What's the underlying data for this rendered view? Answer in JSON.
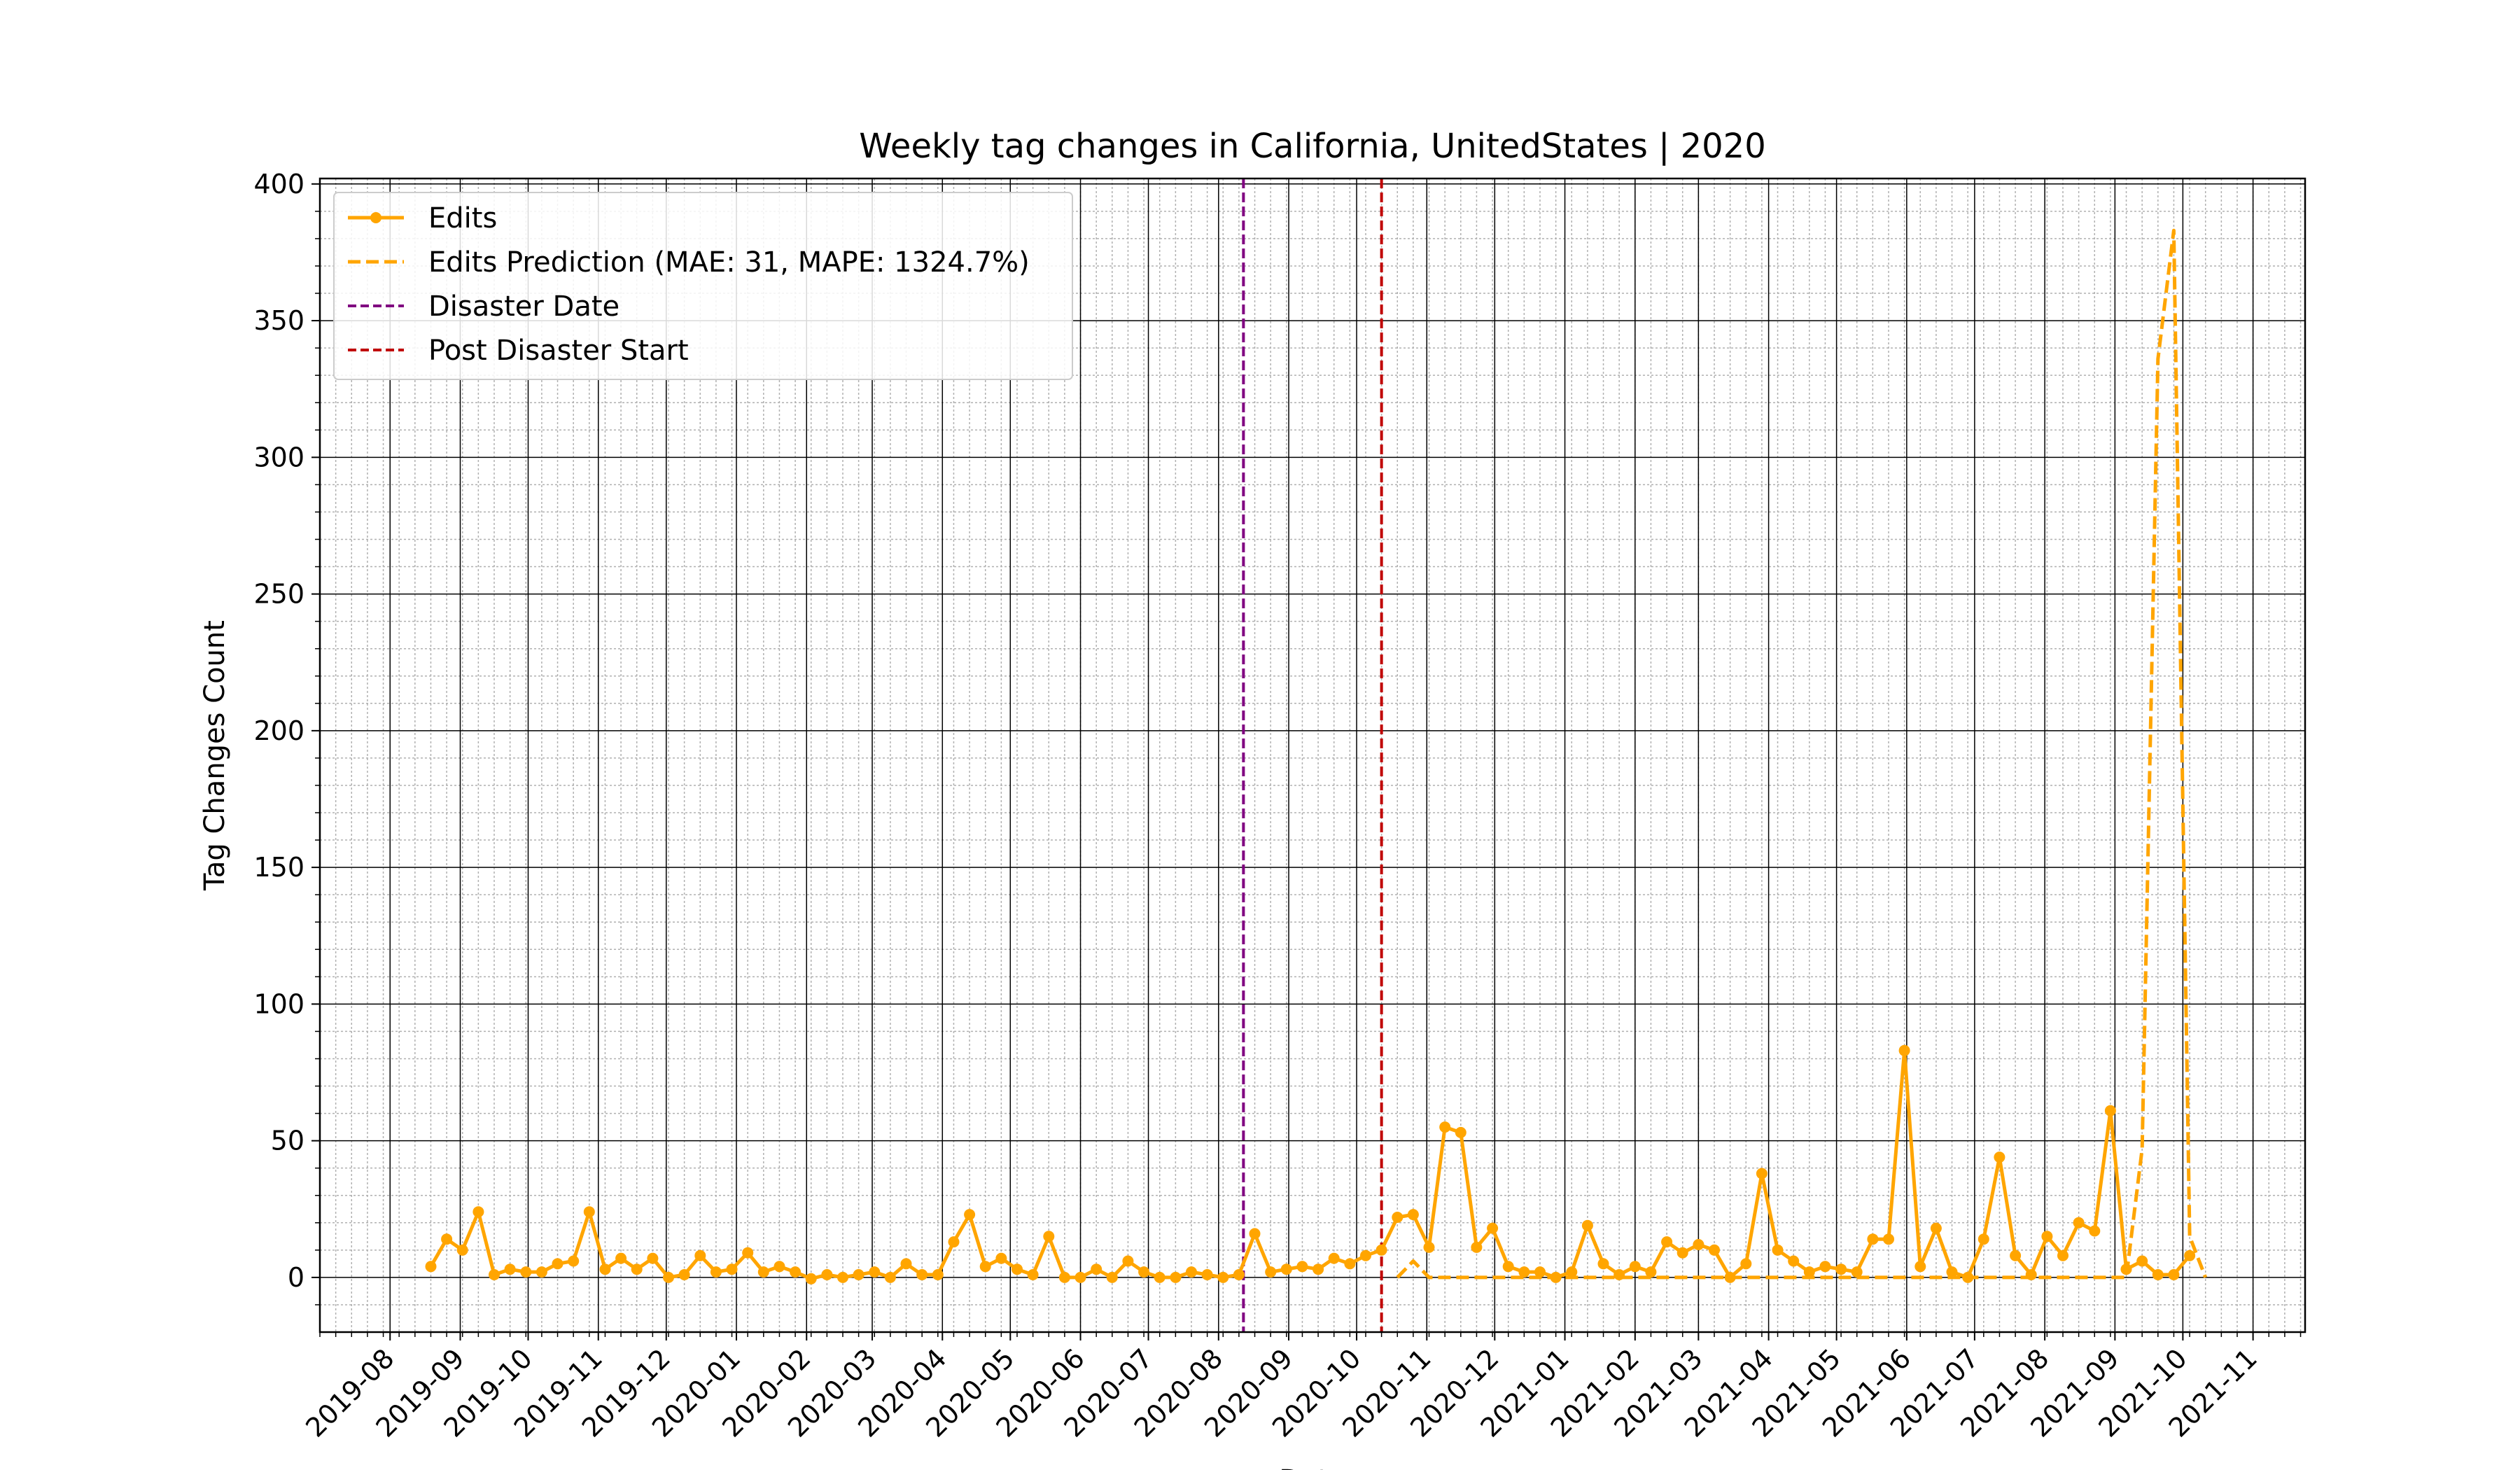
{
  "chart_data": {
    "type": "line",
    "title": "Weekly tag changes in California, UnitedStates | 2020",
    "xlabel": "Date",
    "ylabel": "Tag Changes Count",
    "x_axis": "date",
    "xlim": [
      "2019-07-01",
      "2021-11-24"
    ],
    "ylim": [
      -20,
      402
    ],
    "grid": true,
    "legend_position": "upper-left",
    "x_ticks": [
      "2019-08",
      "2019-09",
      "2019-10",
      "2019-11",
      "2019-12",
      "2020-01",
      "2020-02",
      "2020-03",
      "2020-04",
      "2020-05",
      "2020-06",
      "2020-07",
      "2020-08",
      "2020-09",
      "2020-10",
      "2020-11",
      "2020-12",
      "2021-01",
      "2021-02",
      "2021-03",
      "2021-04",
      "2021-05",
      "2021-06",
      "2021-07",
      "2021-08",
      "2021-09",
      "2021-10",
      "2021-11"
    ],
    "y_ticks": [
      0,
      50,
      100,
      150,
      200,
      250,
      300,
      350,
      400
    ],
    "series": [
      {
        "name": "Edits",
        "color": "#FFA500",
        "style": "solid-marker",
        "points": [
          [
            "2019-08-19",
            4
          ],
          [
            "2019-08-26",
            14
          ],
          [
            "2019-09-02",
            10
          ],
          [
            "2019-09-09",
            24
          ],
          [
            "2019-09-16",
            1
          ],
          [
            "2019-09-23",
            3
          ],
          [
            "2019-09-30",
            2
          ],
          [
            "2019-10-07",
            2
          ],
          [
            "2019-10-14",
            5
          ],
          [
            "2019-10-21",
            6
          ],
          [
            "2019-10-28",
            24
          ],
          [
            "2019-11-04",
            3
          ],
          [
            "2019-11-11",
            7
          ],
          [
            "2019-11-18",
            3
          ],
          [
            "2019-11-25",
            7
          ],
          [
            "2019-12-02",
            0
          ],
          [
            "2019-12-09",
            1
          ],
          [
            "2019-12-16",
            8
          ],
          [
            "2019-12-23",
            2
          ],
          [
            "2019-12-30",
            3
          ],
          [
            "2020-01-06",
            9
          ],
          [
            "2020-01-13",
            2
          ],
          [
            "2020-01-20",
            4
          ],
          [
            "2020-01-27",
            2
          ],
          [
            "2020-02-03",
            -0.5
          ],
          [
            "2020-02-10",
            1
          ],
          [
            "2020-02-17",
            0
          ],
          [
            "2020-02-24",
            1
          ],
          [
            "2020-03-02",
            2
          ],
          [
            "2020-03-09",
            0
          ],
          [
            "2020-03-16",
            5
          ],
          [
            "2020-03-23",
            1
          ],
          [
            "2020-03-30",
            1
          ],
          [
            "2020-04-06",
            13
          ],
          [
            "2020-04-13",
            23
          ],
          [
            "2020-04-20",
            4
          ],
          [
            "2020-04-27",
            7
          ],
          [
            "2020-05-04",
            3
          ],
          [
            "2020-05-11",
            1
          ],
          [
            "2020-05-18",
            15
          ],
          [
            "2020-05-25",
            0
          ],
          [
            "2020-06-01",
            0
          ],
          [
            "2020-06-08",
            3
          ],
          [
            "2020-06-15",
            0
          ],
          [
            "2020-06-22",
            6
          ],
          [
            "2020-06-29",
            2
          ],
          [
            "2020-07-06",
            0
          ],
          [
            "2020-07-13",
            0
          ],
          [
            "2020-07-20",
            2
          ],
          [
            "2020-07-27",
            1
          ],
          [
            "2020-08-03",
            0
          ],
          [
            "2020-08-10",
            1
          ],
          [
            "2020-08-17",
            16
          ],
          [
            "2020-08-24",
            2
          ],
          [
            "2020-08-31",
            3
          ],
          [
            "2020-09-07",
            4
          ],
          [
            "2020-09-14",
            3
          ],
          [
            "2020-09-21",
            7
          ],
          [
            "2020-09-28",
            5
          ],
          [
            "2020-10-05",
            8
          ],
          [
            "2020-10-12",
            10
          ],
          [
            "2020-10-19",
            22
          ],
          [
            "2020-10-26",
            23
          ],
          [
            "2020-11-02",
            11
          ],
          [
            "2020-11-09",
            55
          ],
          [
            "2020-11-16",
            53
          ],
          [
            "2020-11-23",
            11
          ],
          [
            "2020-11-30",
            18
          ],
          [
            "2020-12-07",
            4
          ],
          [
            "2020-12-14",
            2
          ],
          [
            "2020-12-21",
            2
          ],
          [
            "2020-12-28",
            0
          ],
          [
            "2021-01-04",
            2
          ],
          [
            "2021-01-11",
            19
          ],
          [
            "2021-01-18",
            5
          ],
          [
            "2021-01-25",
            1
          ],
          [
            "2021-02-01",
            4
          ],
          [
            "2021-02-08",
            2
          ],
          [
            "2021-02-15",
            13
          ],
          [
            "2021-02-22",
            9
          ],
          [
            "2021-03-01",
            12
          ],
          [
            "2021-03-08",
            10
          ],
          [
            "2021-03-15",
            0
          ],
          [
            "2021-03-22",
            5
          ],
          [
            "2021-03-29",
            38
          ],
          [
            "2021-04-05",
            10
          ],
          [
            "2021-04-12",
            6
          ],
          [
            "2021-04-19",
            2
          ],
          [
            "2021-04-26",
            4
          ],
          [
            "2021-05-03",
            3
          ],
          [
            "2021-05-10",
            2
          ],
          [
            "2021-05-17",
            14
          ],
          [
            "2021-05-24",
            14
          ],
          [
            "2021-05-31",
            83
          ],
          [
            "2021-06-07",
            4
          ],
          [
            "2021-06-14",
            18
          ],
          [
            "2021-06-21",
            2
          ],
          [
            "2021-06-28",
            0
          ],
          [
            "2021-07-05",
            14
          ],
          [
            "2021-07-12",
            44
          ],
          [
            "2021-07-19",
            8
          ],
          [
            "2021-07-26",
            1
          ],
          [
            "2021-08-02",
            15
          ],
          [
            "2021-08-09",
            8
          ],
          [
            "2021-08-16",
            20
          ],
          [
            "2021-08-23",
            17
          ],
          [
            "2021-08-30",
            61
          ],
          [
            "2021-09-06",
            3
          ],
          [
            "2021-09-13",
            6
          ],
          [
            "2021-09-20",
            1
          ],
          [
            "2021-09-27",
            1
          ],
          [
            "2021-10-04",
            8
          ]
        ]
      },
      {
        "name": "Edits Prediction (MAE: 31, MAPE: 1324.7%)",
        "color": "#FFA500",
        "style": "dashed",
        "points": [
          [
            "2020-10-19",
            0
          ],
          [
            "2020-10-26",
            6
          ],
          [
            "2020-11-02",
            0
          ],
          [
            "2020-11-09",
            0
          ],
          [
            "2020-11-16",
            0
          ],
          [
            "2020-11-23",
            0
          ],
          [
            "2020-11-30",
            0
          ],
          [
            "2020-12-07",
            0
          ],
          [
            "2020-12-14",
            0
          ],
          [
            "2020-12-21",
            0
          ],
          [
            "2020-12-28",
            0
          ],
          [
            "2021-01-04",
            0
          ],
          [
            "2021-01-11",
            0
          ],
          [
            "2021-01-18",
            0
          ],
          [
            "2021-01-25",
            0
          ],
          [
            "2021-02-01",
            0
          ],
          [
            "2021-02-08",
            0
          ],
          [
            "2021-02-15",
            0
          ],
          [
            "2021-02-22",
            0
          ],
          [
            "2021-03-01",
            0
          ],
          [
            "2021-03-08",
            0
          ],
          [
            "2021-03-15",
            0
          ],
          [
            "2021-03-22",
            0
          ],
          [
            "2021-03-29",
            0
          ],
          [
            "2021-04-05",
            0
          ],
          [
            "2021-04-12",
            0
          ],
          [
            "2021-04-19",
            0
          ],
          [
            "2021-04-26",
            0
          ],
          [
            "2021-05-03",
            0
          ],
          [
            "2021-05-10",
            0
          ],
          [
            "2021-05-17",
            0
          ],
          [
            "2021-05-24",
            0
          ],
          [
            "2021-05-31",
            0
          ],
          [
            "2021-06-07",
            0
          ],
          [
            "2021-06-14",
            0
          ],
          [
            "2021-06-21",
            0
          ],
          [
            "2021-06-28",
            0
          ],
          [
            "2021-07-05",
            0
          ],
          [
            "2021-07-12",
            0
          ],
          [
            "2021-07-19",
            0
          ],
          [
            "2021-07-26",
            0
          ],
          [
            "2021-08-02",
            0
          ],
          [
            "2021-08-09",
            0
          ],
          [
            "2021-08-16",
            0
          ],
          [
            "2021-08-23",
            0
          ],
          [
            "2021-08-30",
            0
          ],
          [
            "2021-09-06",
            0
          ],
          [
            "2021-09-13",
            47
          ],
          [
            "2021-09-20",
            336
          ],
          [
            "2021-09-27",
            383
          ],
          [
            "2021-10-04",
            15
          ],
          [
            "2021-10-11",
            0
          ]
        ]
      }
    ],
    "vlines": [
      {
        "name": "Disaster Date",
        "date": "2020-08-12",
        "color": "#800080",
        "style": "dashed"
      },
      {
        "name": "Post Disaster Start",
        "date": "2020-10-12",
        "color": "#C00000",
        "style": "dashed"
      }
    ]
  }
}
